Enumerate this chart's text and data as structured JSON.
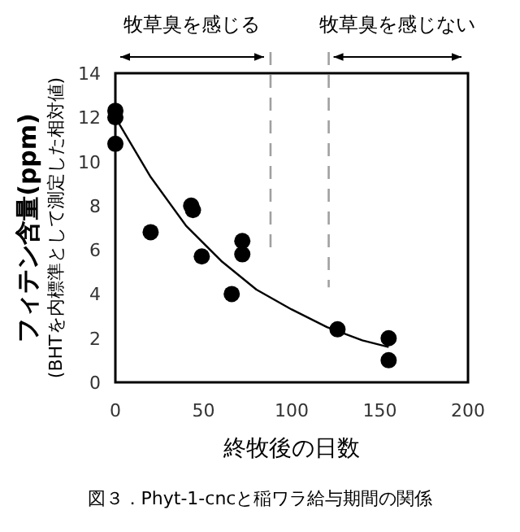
{
  "chart_data": {
    "type": "scatter",
    "xlabel": "終牧後の日数",
    "ylabel": "フィテン含量(ppm)",
    "xlim": [
      0,
      200
    ],
    "ylim": [
      0,
      14
    ],
    "xticks": [
      0,
      50,
      100,
      150,
      200
    ],
    "yticks": [
      0,
      2,
      4,
      6,
      8,
      10,
      12,
      14
    ],
    "grid": false,
    "series": [
      {
        "color": "#000000",
        "marker": "circle",
        "x": [
          0,
          0,
          0,
          20,
          43,
          44,
          49,
          66,
          72,
          72,
          126,
          155,
          155
        ],
        "values": [
          12.3,
          12.0,
          10.8,
          6.8,
          8.0,
          7.8,
          5.7,
          4.0,
          6.4,
          5.8,
          2.4,
          2.0,
          1.0
        ]
      },
      {
        "type": "line",
        "color": "#000000",
        "x": [
          0,
          20,
          40,
          60,
          80,
          100,
          120,
          140,
          155
        ],
        "values": [
          12.0,
          9.3,
          7.1,
          5.5,
          4.2,
          3.3,
          2.5,
          1.9,
          1.6
        ]
      }
    ],
    "ref_lines": [
      {
        "axis": "x",
        "value": 88,
        "color": "#a0a0a0",
        "line_style": "dashed"
      },
      {
        "axis": "x",
        "value": 121,
        "color": "#a0a0a0",
        "line_style": "dashed"
      }
    ],
    "annotations": [
      "牧草臭を感じる",
      "牧草臭を感じない",
      "(BHTを内標準として測定した相対値)",
      "図３．Phyt-1-cncと稲ワラ給与期間の関係"
    ]
  }
}
